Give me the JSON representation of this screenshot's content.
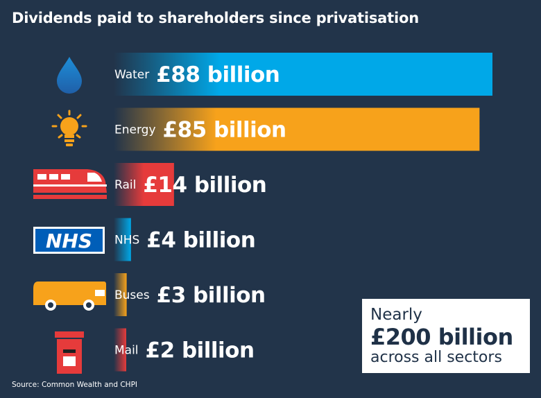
{
  "title": "Dividends paid to shareholders since privatisation",
  "source": "Source: Common Wealth and CHPI",
  "callout": {
    "line1": "Nearly",
    "line2": "£200 billion",
    "line3": "across all sectors"
  },
  "chart_data": {
    "type": "bar",
    "orientation": "horizontal",
    "title": "Dividends paid to shareholders since privatisation",
    "unit": "£ billion",
    "categories": [
      "Water",
      "Energy",
      "Rail",
      "NHS",
      "Buses",
      "Mail"
    ],
    "values": [
      88,
      85,
      14,
      4,
      3,
      2
    ],
    "value_labels": [
      "£88 billion",
      "£85 billion",
      "£14 billion",
      "£4 billion",
      "£3 billion",
      "£2 billion"
    ],
    "icons": [
      "water-drop-icon",
      "lightbulb-icon",
      "train-icon",
      "nhs-logo-icon",
      "bus-icon",
      "postbox-icon"
    ],
    "colors": [
      "#00a8e8",
      "#f7a21b",
      "#e63b3b",
      "#00a8e8",
      "#f7a21b",
      "#e63b3b"
    ],
    "grid": false,
    "legend": "none"
  }
}
